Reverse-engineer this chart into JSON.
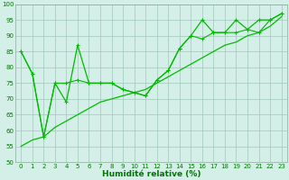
{
  "xlabel": "Humidité relative (%)",
  "bg_color": "#d4eee8",
  "grid_color": "#a0c8b8",
  "line_color": "#00bb00",
  "x_values": [
    0,
    1,
    2,
    3,
    4,
    5,
    6,
    7,
    8,
    9,
    10,
    11,
    12,
    13,
    14,
    15,
    16,
    17,
    18,
    19,
    20,
    21,
    22,
    23
  ],
  "y_main": [
    85,
    78,
    58,
    75,
    69,
    87,
    75,
    75,
    75,
    73,
    72,
    71,
    76,
    79,
    86,
    90,
    95,
    91,
    91,
    95,
    92,
    95,
    95,
    97
  ],
  "y_line2": [
    85,
    78,
    58,
    75,
    75,
    76,
    75,
    75,
    75,
    73,
    72,
    71,
    76,
    79,
    86,
    90,
    89,
    91,
    91,
    91,
    92,
    91,
    95,
    97
  ],
  "y_trend": [
    55,
    57,
    58,
    61,
    63,
    65,
    67,
    69,
    70,
    71,
    72,
    73,
    75,
    77,
    79,
    81,
    83,
    85,
    87,
    88,
    90,
    91,
    93,
    96
  ],
  "ylim": [
    50,
    100
  ],
  "xlim": [
    -0.5,
    23.5
  ],
  "yticks": [
    50,
    55,
    60,
    65,
    70,
    75,
    80,
    85,
    90,
    95,
    100
  ],
  "xticks": [
    0,
    1,
    2,
    3,
    4,
    5,
    6,
    7,
    8,
    9,
    10,
    11,
    12,
    13,
    14,
    15,
    16,
    17,
    18,
    19,
    20,
    21,
    22,
    23
  ],
  "tick_color": "#007700",
  "xlabel_color": "#007700",
  "xlabel_fontsize": 6.5,
  "tick_fontsize": 5.0
}
